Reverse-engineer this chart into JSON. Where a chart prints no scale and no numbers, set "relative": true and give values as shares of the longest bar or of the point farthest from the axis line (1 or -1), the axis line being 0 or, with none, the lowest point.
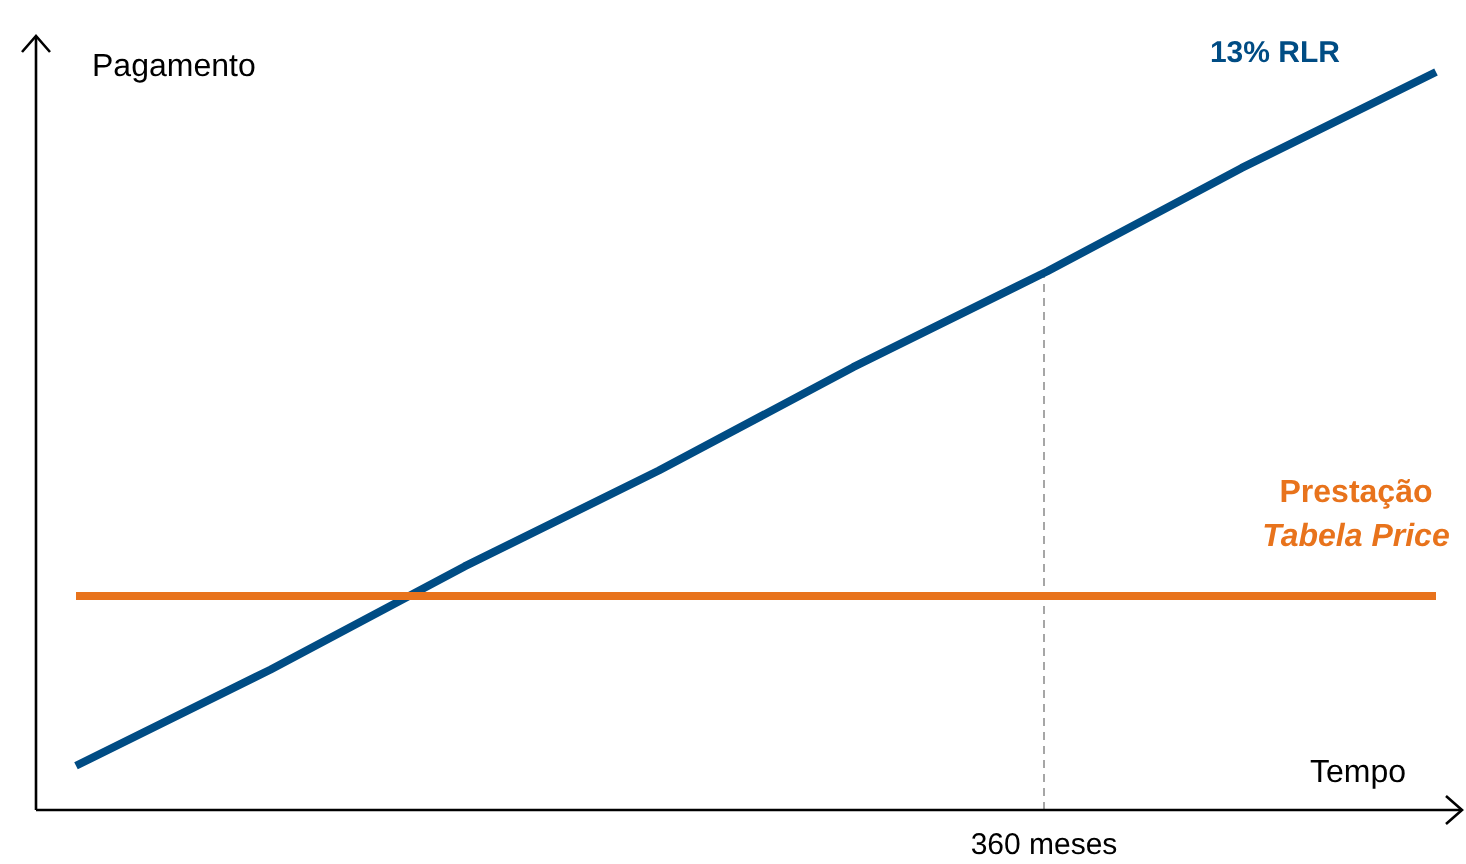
{
  "chart_data": {
    "type": "line",
    "relative": true,
    "xlabel": "Tempo",
    "ylabel": "Pagamento",
    "categories": [
      null,
      null,
      null,
      null,
      null,
      null,
      null,
      null
    ],
    "legend": false,
    "grid": false,
    "marker": "none",
    "line_style": "solid",
    "series": [
      {
        "name": "13% RLR",
        "color": "#004c84",
        "values": [
          0.06,
          0.19,
          0.33,
          0.46,
          0.6,
          0.73,
          0.87,
          1
        ]
      },
      {
        "name": "Prestação Tabela Price",
        "color": "#e8731c",
        "values": [
          0.29,
          0.29,
          0.29,
          0.29,
          0.29,
          0.29,
          0.29,
          0.29
        ]
      }
    ],
    "annotations": [
      "360 meses"
    ]
  }
}
